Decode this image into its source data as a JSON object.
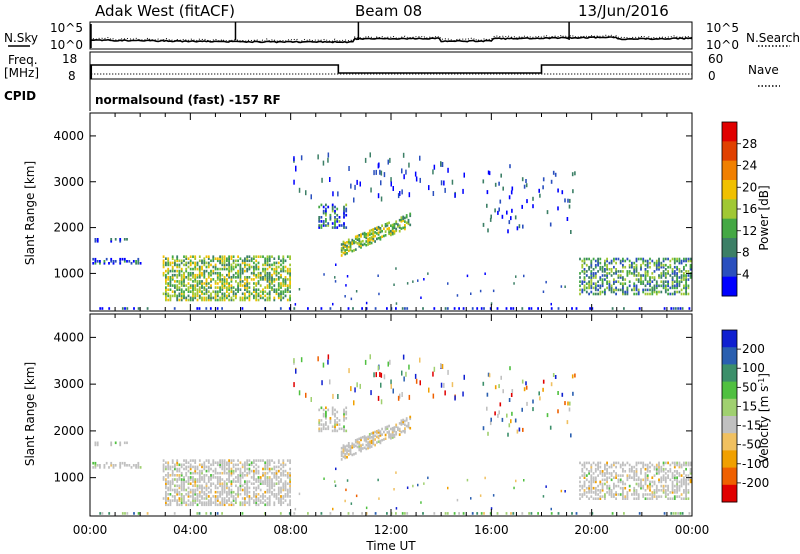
{
  "header": {
    "title": "Adak West (fitACF)",
    "beam": "Beam 08",
    "date": "13/Jun/2016"
  },
  "noise_panel": {
    "left_label": "N.Sky",
    "right_label": "N.Search",
    "left_ticks": [
      "10^5",
      "10^0"
    ],
    "right_ticks": [
      "10^5",
      "10^0"
    ]
  },
  "freq_panel": {
    "left_label_top": "Freq.",
    "left_label_bottom": "[MHz]",
    "right_label": "Nave",
    "left_ticks": [
      "18",
      "8"
    ],
    "right_ticks": [
      "60",
      "0"
    ]
  },
  "cpid": {
    "label": "CPID",
    "text": "normalsound (fast) -157 RF"
  },
  "colors": {
    "power": [
      "#0000ff",
      "#2a4fbe",
      "#3c7f66",
      "#44a844",
      "#a0c834",
      "#f0c000",
      "#f08000",
      "#e04000",
      "#e00000"
    ],
    "velocity": [
      "#e00000",
      "#ef6000",
      "#f0a000",
      "#f0c060",
      "#c0c0c0",
      "#a0d070",
      "#50c040",
      "#3c8f6a",
      "#2a5fb0",
      "#1020d0"
    ]
  },
  "chart_data": [
    {
      "type": "heatmap",
      "ylabel": "Slant Range [km]",
      "xlim": [
        "00:00",
        "00:00"
      ],
      "ylim": [
        180,
        4500
      ],
      "y_ticks": [
        "1000",
        "2000",
        "3000",
        "4000"
      ],
      "x_ticks": [
        "00:00",
        "04:00",
        "08:00",
        "12:00",
        "16:00",
        "20:00",
        "00:00"
      ],
      "colorbar": {
        "label": "Power [dB]",
        "ticks": [
          "28",
          "24",
          "20",
          "16",
          "12",
          "8",
          "4"
        ],
        "range": [
          0,
          30
        ]
      }
    },
    {
      "type": "heatmap",
      "ylabel": "Slant Range [km]",
      "xlabel": "Time UT",
      "xlim": [
        "00:00",
        "00:00"
      ],
      "ylim": [
        180,
        4500
      ],
      "y_ticks": [
        "1000",
        "2000",
        "3000",
        "4000"
      ],
      "x_ticks": [
        "00:00",
        "04:00",
        "08:00",
        "12:00",
        "16:00",
        "20:00",
        "00:00"
      ],
      "colorbar": {
        "label": "Velocity [m s^-1]",
        "ticks": [
          "200",
          "100",
          "50",
          "15",
          "-15",
          "-50",
          "-100",
          "-200"
        ],
        "range": [
          -250,
          250
        ]
      }
    }
  ]
}
